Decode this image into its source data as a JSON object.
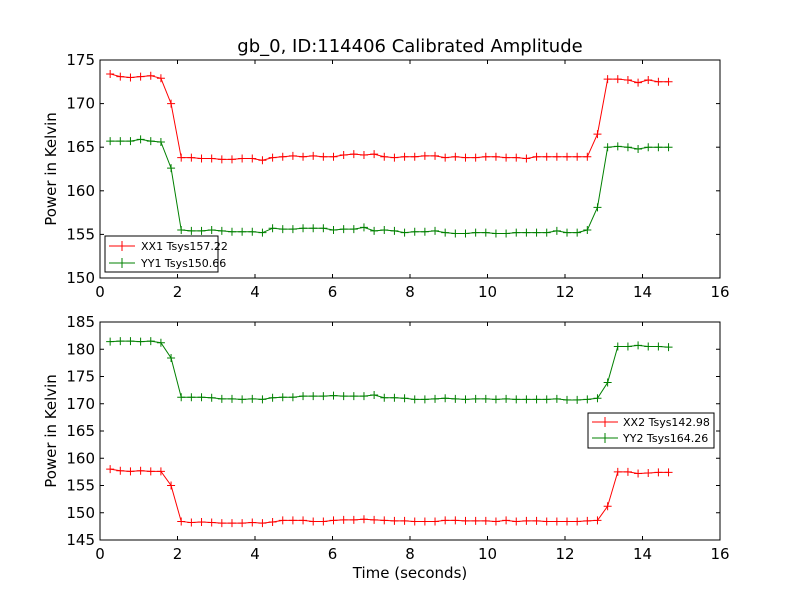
{
  "figure": {
    "title": "gb_0, ID:114406 Calibrated Amplitude",
    "xlabel": "Time (seconds)"
  },
  "chart_data": [
    {
      "type": "line",
      "ylabel": "Power in Kelvin",
      "xlim": [
        0,
        16
      ],
      "ylim": [
        150,
        175
      ],
      "xticks": [
        0,
        2,
        4,
        6,
        8,
        10,
        12,
        14,
        16
      ],
      "yticks": [
        150,
        155,
        160,
        165,
        170,
        175
      ],
      "grid": false,
      "legend": "bottom-left",
      "series": [
        {
          "name": "XX1 Tsys157.22",
          "color": "#ff0000",
          "marker": "+",
          "x": [
            0.262,
            0.524,
            0.786,
            1.048,
            1.31,
            1.572,
            1.834,
            2.096,
            2.358,
            2.62,
            2.882,
            3.144,
            3.406,
            3.668,
            3.93,
            4.192,
            4.454,
            4.716,
            4.978,
            5.24,
            5.502,
            5.764,
            6.026,
            6.288,
            6.55,
            6.812,
            7.074,
            7.336,
            7.598,
            7.86,
            8.122,
            8.384,
            8.646,
            8.908,
            9.17,
            9.432,
            9.694,
            9.956,
            10.218,
            10.48,
            10.742,
            11.004,
            11.266,
            11.528,
            11.79,
            12.052,
            12.314,
            12.576,
            12.838,
            13.1,
            13.362,
            13.624,
            13.886,
            14.148,
            14.41,
            14.672
          ],
          "y": [
            173.4,
            173.1,
            173.0,
            173.1,
            173.2,
            172.9,
            170.0,
            163.8,
            163.8,
            163.7,
            163.7,
            163.6,
            163.6,
            163.7,
            163.7,
            163.5,
            163.8,
            163.9,
            164.0,
            163.9,
            164.0,
            163.9,
            163.9,
            164.1,
            164.2,
            164.1,
            164.2,
            163.9,
            163.8,
            163.9,
            163.9,
            164.0,
            164.0,
            163.8,
            163.9,
            163.8,
            163.8,
            163.9,
            163.9,
            163.8,
            163.8,
            163.7,
            163.9,
            163.9,
            163.9,
            163.9,
            163.9,
            163.9,
            166.5,
            172.8,
            172.8,
            172.7,
            172.4,
            172.7,
            172.5,
            172.5
          ]
        },
        {
          "name": "YY1 Tsys150.66",
          "color": "#008000",
          "marker": "+",
          "x": [
            0.262,
            0.524,
            0.786,
            1.048,
            1.31,
            1.572,
            1.834,
            2.096,
            2.358,
            2.62,
            2.882,
            3.144,
            3.406,
            3.668,
            3.93,
            4.192,
            4.454,
            4.716,
            4.978,
            5.24,
            5.502,
            5.764,
            6.026,
            6.288,
            6.55,
            6.812,
            7.074,
            7.336,
            7.598,
            7.86,
            8.122,
            8.384,
            8.646,
            8.908,
            9.17,
            9.432,
            9.694,
            9.956,
            10.218,
            10.48,
            10.742,
            11.004,
            11.266,
            11.528,
            11.79,
            12.052,
            12.314,
            12.576,
            12.838,
            13.1,
            13.362,
            13.624,
            13.886,
            14.148,
            14.41,
            14.672
          ],
          "y": [
            165.7,
            165.7,
            165.7,
            165.9,
            165.7,
            165.6,
            162.6,
            155.5,
            155.4,
            155.4,
            155.5,
            155.4,
            155.3,
            155.3,
            155.3,
            155.2,
            155.7,
            155.6,
            155.6,
            155.7,
            155.7,
            155.7,
            155.5,
            155.6,
            155.6,
            155.8,
            155.4,
            155.5,
            155.4,
            155.2,
            155.3,
            155.3,
            155.4,
            155.2,
            155.1,
            155.1,
            155.2,
            155.2,
            155.1,
            155.1,
            155.2,
            155.2,
            155.2,
            155.2,
            155.4,
            155.2,
            155.2,
            155.5,
            158.1,
            165.0,
            165.1,
            165.0,
            164.8,
            165.0,
            165.0,
            165.0
          ]
        }
      ]
    },
    {
      "type": "line",
      "ylabel": "Power in Kelvin",
      "xlim": [
        0,
        16
      ],
      "ylim": [
        145,
        185
      ],
      "xticks": [
        0,
        2,
        4,
        6,
        8,
        10,
        12,
        14,
        16
      ],
      "yticks": [
        145,
        150,
        155,
        160,
        165,
        170,
        175,
        180,
        185
      ],
      "grid": false,
      "legend": "center-right",
      "series": [
        {
          "name": "XX2 Tsys142.98",
          "color": "#ff0000",
          "marker": "+",
          "x": [
            0.262,
            0.524,
            0.786,
            1.048,
            1.31,
            1.572,
            1.834,
            2.096,
            2.358,
            2.62,
            2.882,
            3.144,
            3.406,
            3.668,
            3.93,
            4.192,
            4.454,
            4.716,
            4.978,
            5.24,
            5.502,
            5.764,
            6.026,
            6.288,
            6.55,
            6.812,
            7.074,
            7.336,
            7.598,
            7.86,
            8.122,
            8.384,
            8.646,
            8.908,
            9.17,
            9.432,
            9.694,
            9.956,
            10.218,
            10.48,
            10.742,
            11.004,
            11.266,
            11.528,
            11.79,
            12.052,
            12.314,
            12.576,
            12.838,
            13.1,
            13.362,
            13.624,
            13.886,
            14.148,
            14.41,
            14.672
          ],
          "y": [
            158.0,
            157.7,
            157.6,
            157.7,
            157.6,
            157.6,
            155.0,
            148.4,
            148.2,
            148.3,
            148.2,
            148.1,
            148.1,
            148.1,
            148.2,
            148.1,
            148.3,
            148.6,
            148.6,
            148.6,
            148.4,
            148.4,
            148.6,
            148.7,
            148.7,
            148.8,
            148.7,
            148.6,
            148.5,
            148.5,
            148.4,
            148.4,
            148.4,
            148.6,
            148.6,
            148.5,
            148.5,
            148.5,
            148.4,
            148.6,
            148.4,
            148.5,
            148.5,
            148.4,
            148.4,
            148.4,
            148.4,
            148.5,
            148.6,
            151.2,
            157.5,
            157.5,
            157.2,
            157.3,
            157.4,
            157.4
          ]
        },
        {
          "name": "YY2 Tsys164.26",
          "color": "#008000",
          "marker": "+",
          "x": [
            0.262,
            0.524,
            0.786,
            1.048,
            1.31,
            1.572,
            1.834,
            2.096,
            2.358,
            2.62,
            2.882,
            3.144,
            3.406,
            3.668,
            3.93,
            4.192,
            4.454,
            4.716,
            4.978,
            5.24,
            5.502,
            5.764,
            6.026,
            6.288,
            6.55,
            6.812,
            7.074,
            7.336,
            7.598,
            7.86,
            8.122,
            8.384,
            8.646,
            8.908,
            9.17,
            9.432,
            9.694,
            9.956,
            10.218,
            10.48,
            10.742,
            11.004,
            11.266,
            11.528,
            11.79,
            12.052,
            12.314,
            12.576,
            12.838,
            13.1,
            13.362,
            13.624,
            13.886,
            14.148,
            14.41,
            14.672
          ],
          "y": [
            181.4,
            181.5,
            181.5,
            181.4,
            181.5,
            181.2,
            178.4,
            171.2,
            171.2,
            171.2,
            171.1,
            170.9,
            170.9,
            170.8,
            170.9,
            170.8,
            171.1,
            171.2,
            171.2,
            171.4,
            171.4,
            171.4,
            171.5,
            171.4,
            171.4,
            171.4,
            171.6,
            171.1,
            171.1,
            171.0,
            170.8,
            170.8,
            170.9,
            171.0,
            170.9,
            170.8,
            170.9,
            170.9,
            170.8,
            170.9,
            170.8,
            170.8,
            170.8,
            170.8,
            170.9,
            170.7,
            170.7,
            170.8,
            171.0,
            173.9,
            180.5,
            180.5,
            180.7,
            180.5,
            180.5,
            180.4
          ]
        }
      ]
    }
  ]
}
